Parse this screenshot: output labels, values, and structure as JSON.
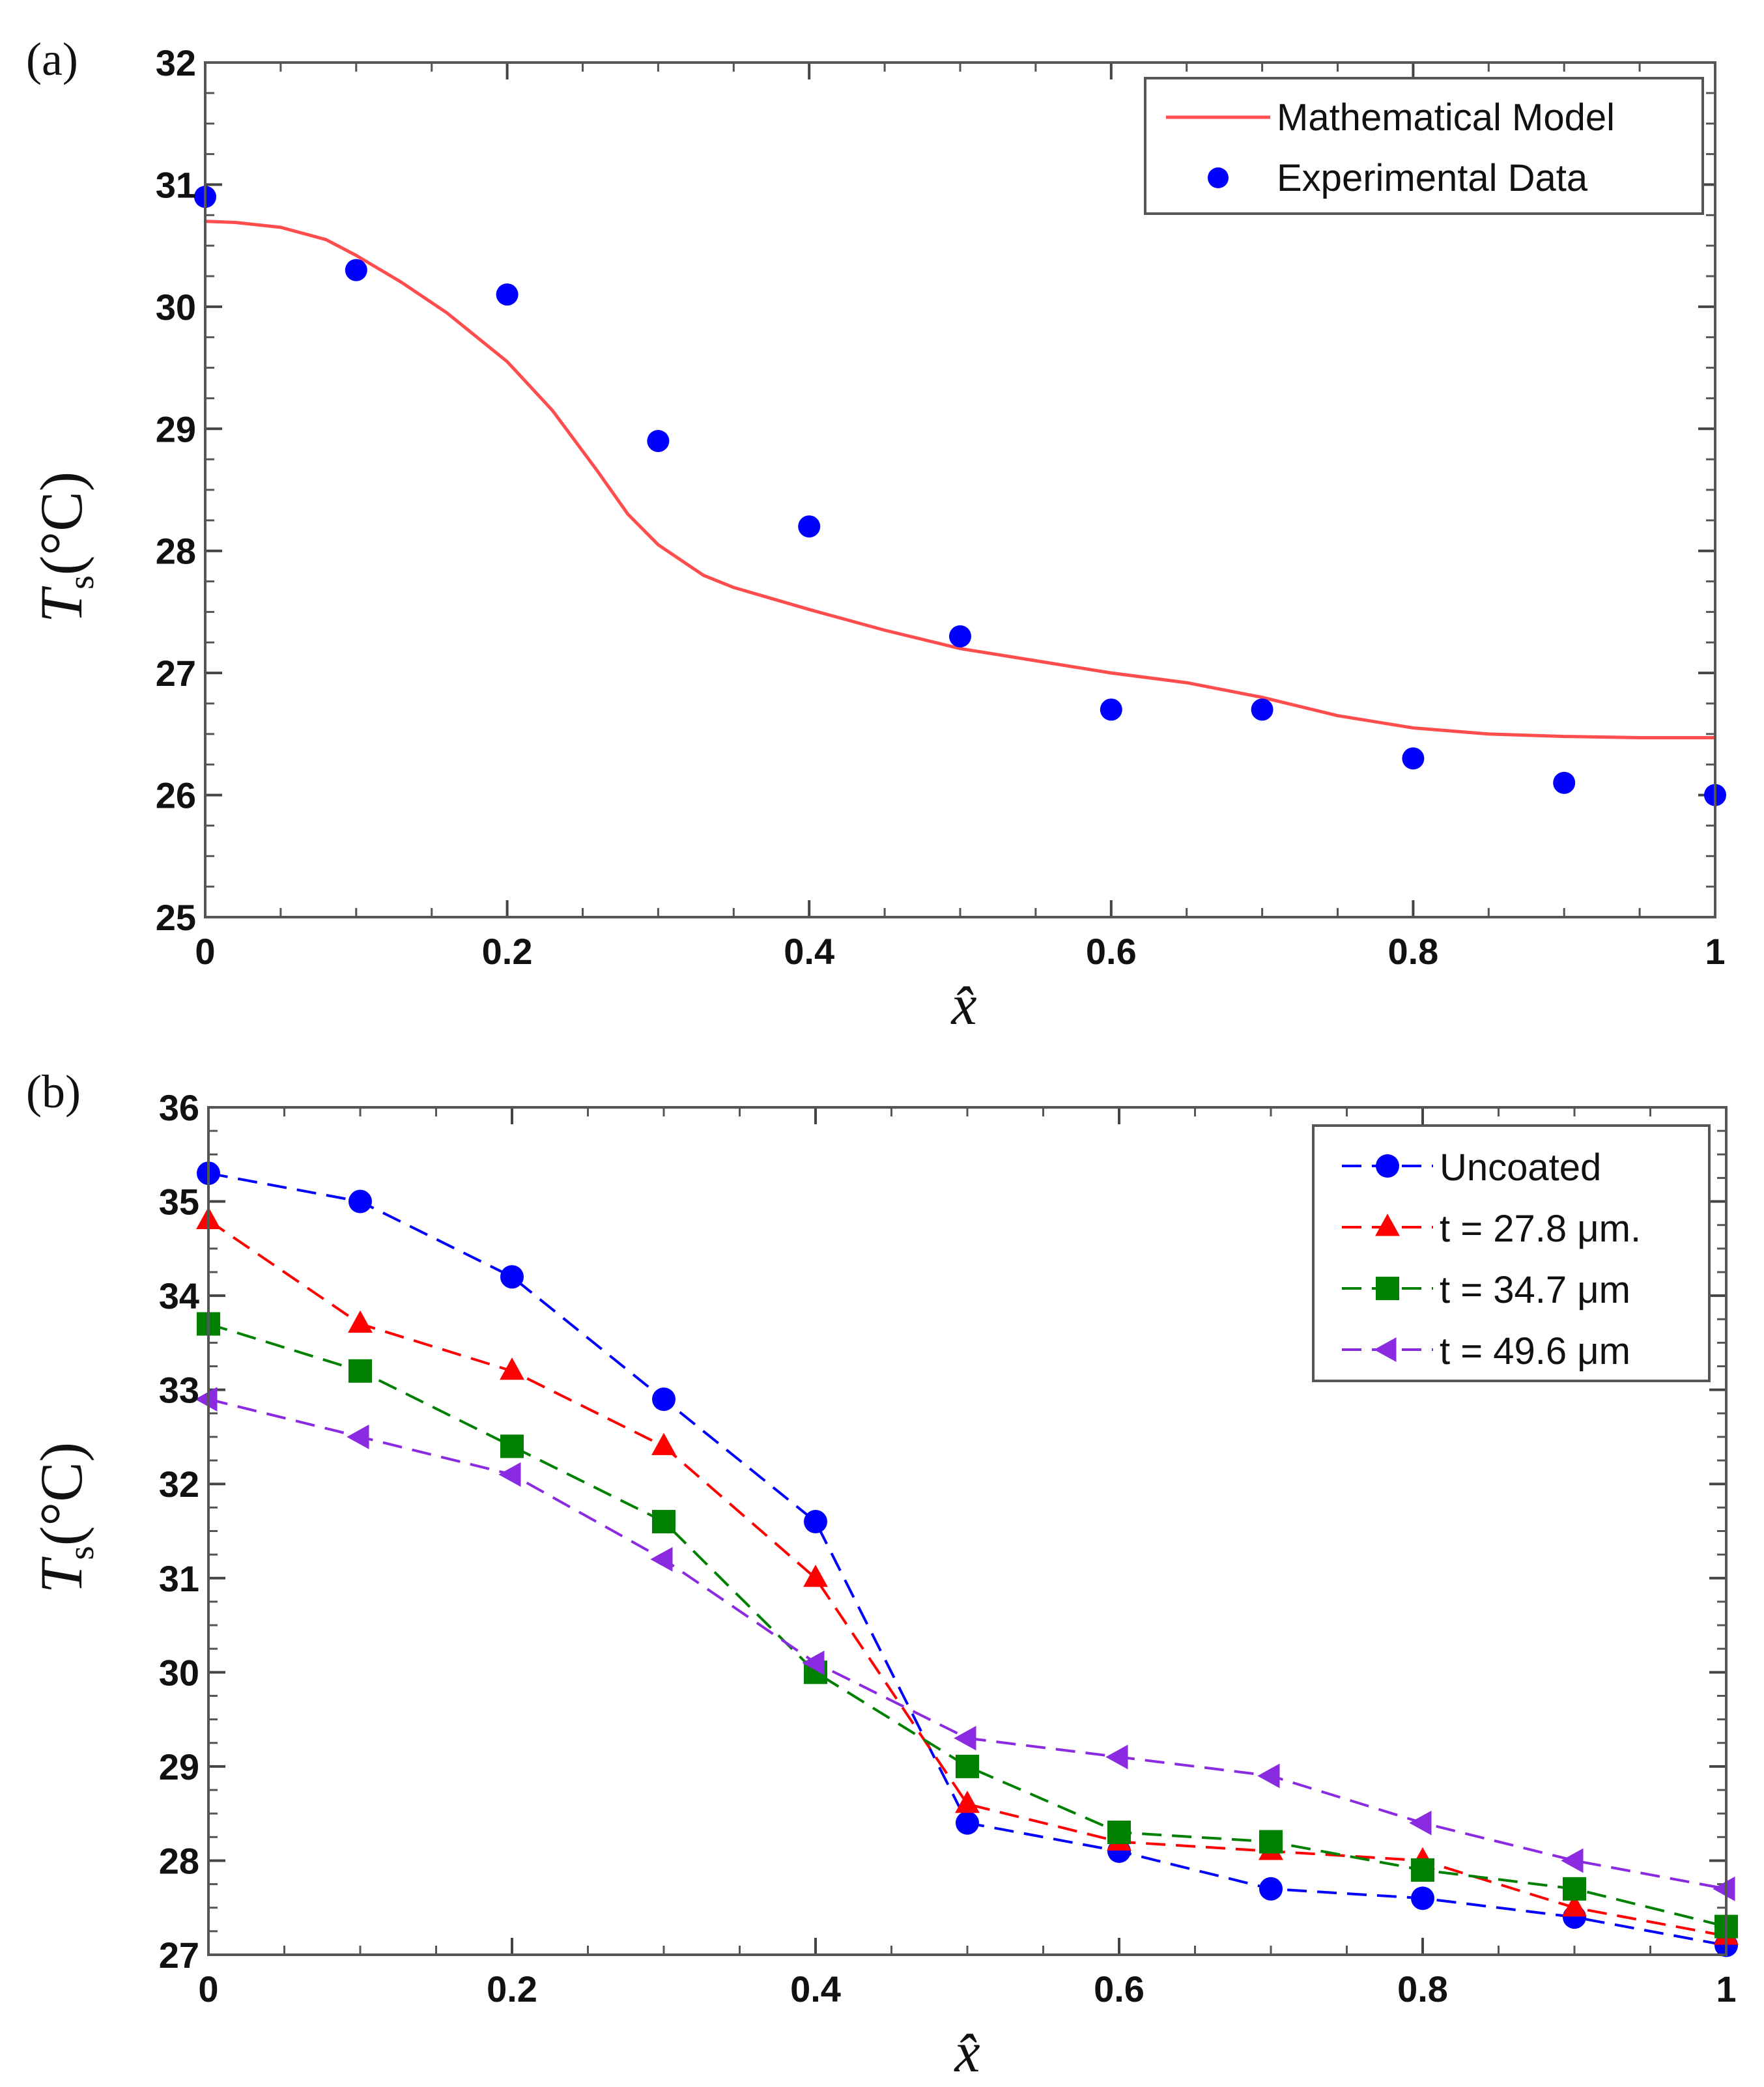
{
  "chart_data": [
    {
      "panel": "(a)",
      "type": "line",
      "xlabel": "x̂",
      "ylabel": {
        "symbol": "T",
        "subscript": "s",
        "unit": "(°C)"
      },
      "xlim": [
        0,
        1
      ],
      "ylim": [
        25,
        32
      ],
      "xticks": [
        0,
        0.2,
        0.4,
        0.6,
        0.8,
        1
      ],
      "xtick_labels": [
        "0",
        "0.2",
        "0.4",
        "0.6",
        "0.8",
        "1"
      ],
      "yticks": [
        25,
        26,
        27,
        28,
        29,
        30,
        31,
        32
      ],
      "ytick_labels": [
        "25",
        "26",
        "27",
        "28",
        "29",
        "30",
        "31",
        "32"
      ],
      "legend_position": "top-right",
      "series": [
        {
          "name": "Mathematical Model",
          "style": "line",
          "color": "#ff4d4d",
          "x": [
            0,
            0.02,
            0.05,
            0.08,
            0.1,
            0.13,
            0.16,
            0.2,
            0.23,
            0.26,
            0.28,
            0.3,
            0.33,
            0.35,
            0.4,
            0.45,
            0.5,
            0.55,
            0.6,
            0.65,
            0.7,
            0.75,
            0.8,
            0.85,
            0.9,
            0.95,
            1.0
          ],
          "y": [
            30.7,
            30.69,
            30.65,
            30.55,
            30.42,
            30.2,
            29.95,
            29.55,
            29.15,
            28.65,
            28.3,
            28.05,
            27.8,
            27.7,
            27.52,
            27.35,
            27.2,
            27.1,
            27.0,
            26.92,
            26.8,
            26.65,
            26.55,
            26.5,
            26.48,
            26.47,
            26.47
          ]
        },
        {
          "name": "Experimental Data",
          "style": "markers",
          "marker": "circle",
          "color": "#0000ff",
          "x": [
            0,
            0.1,
            0.2,
            0.3,
            0.4,
            0.5,
            0.6,
            0.7,
            0.8,
            0.9,
            1.0
          ],
          "y": [
            30.9,
            30.3,
            30.1,
            28.9,
            28.2,
            27.3,
            26.7,
            26.7,
            26.3,
            26.1,
            26.0
          ]
        }
      ]
    },
    {
      "panel": "(b)",
      "type": "line",
      "xlabel": "x̂",
      "ylabel": {
        "symbol": "T",
        "subscript": "s",
        "unit": "(°C)"
      },
      "xlim": [
        0,
        1
      ],
      "ylim": [
        27,
        36
      ],
      "xticks": [
        0,
        0.2,
        0.4,
        0.6,
        0.8,
        1
      ],
      "xtick_labels": [
        "0",
        "0.2",
        "0.4",
        "0.6",
        "0.8",
        "1"
      ],
      "yticks": [
        27,
        28,
        29,
        30,
        31,
        32,
        33,
        34,
        35,
        36
      ],
      "ytick_labels": [
        "27",
        "28",
        "29",
        "30",
        "31",
        "32",
        "33",
        "34",
        "35",
        "36"
      ],
      "legend_position": "top-right",
      "series": [
        {
          "name": "Uncoated",
          "style": "dashed-markers",
          "marker": "circle",
          "color": "#0000ff",
          "x": [
            0,
            0.1,
            0.2,
            0.3,
            0.4,
            0.5,
            0.6,
            0.7,
            0.8,
            0.9,
            1.0
          ],
          "y": [
            35.3,
            35.0,
            34.2,
            32.9,
            31.6,
            28.4,
            28.1,
            27.7,
            27.6,
            27.4,
            27.1
          ]
        },
        {
          "name": "t = 27.8 μm.",
          "style": "dashed-markers",
          "marker": "triangle-up",
          "color": "#ff0000",
          "x": [
            0,
            0.1,
            0.2,
            0.3,
            0.4,
            0.5,
            0.6,
            0.7,
            0.8,
            0.9,
            1.0
          ],
          "y": [
            34.8,
            33.7,
            33.2,
            32.4,
            31.0,
            28.6,
            28.2,
            28.1,
            28.0,
            27.5,
            27.2
          ]
        },
        {
          "name": "t = 34.7 μm",
          "style": "dashed-markers",
          "marker": "square",
          "color": "#008000",
          "x": [
            0,
            0.1,
            0.2,
            0.3,
            0.4,
            0.5,
            0.6,
            0.7,
            0.8,
            0.9,
            1.0
          ],
          "y": [
            33.7,
            33.2,
            32.4,
            31.6,
            30.0,
            29.0,
            28.3,
            28.2,
            27.9,
            27.7,
            27.3
          ]
        },
        {
          "name": "t = 49.6 μm",
          "style": "dashed-markers",
          "marker": "triangle-left",
          "color": "#8a2be2",
          "x": [
            0,
            0.1,
            0.2,
            0.3,
            0.4,
            0.5,
            0.6,
            0.7,
            0.8,
            0.9,
            1.0
          ],
          "y": [
            32.9,
            32.5,
            32.1,
            31.2,
            30.1,
            29.3,
            29.1,
            28.9,
            28.4,
            28.0,
            27.7
          ]
        }
      ]
    }
  ]
}
